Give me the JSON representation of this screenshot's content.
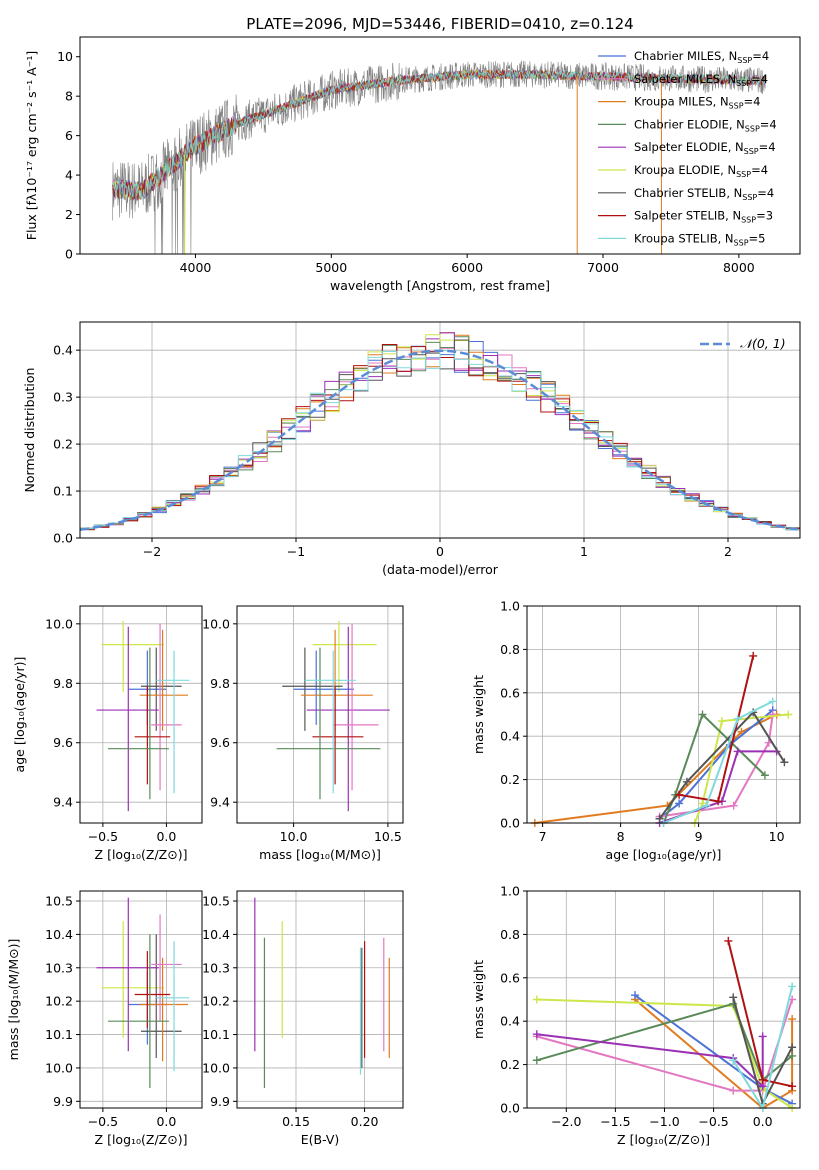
{
  "figure_title": "PLATE=2096, MJD=53446, FIBERID=0410, z=0.124",
  "colors": {
    "chabrier_miles": "#4c72d6",
    "salpeter_miles": "#e377c2",
    "kroupa_miles": "#e07b20",
    "chabrier_elodie": "#5a8a5a",
    "salpeter_elodie": "#9b30b5",
    "kroupa_elodie": "#cde64a",
    "chabrier_stelib": "#555555",
    "salpeter_stelib": "#b01010",
    "kroupa_stelib": "#7fd9dd",
    "data": "#808080",
    "gauss": "#5b8dd6",
    "grid": "#b0b0b0"
  },
  "chart_data": [
    {
      "id": "spectrum",
      "type": "line",
      "title": "PLATE=2096, MJD=53446, FIBERID=0410, z=0.124",
      "xlabel": "wavelength [Angstrom, rest frame]",
      "ylabel": "Flux [fλ10⁻¹⁷ erg cm⁻² s⁻¹ A⁻¹]",
      "xlim": [
        3150,
        8450
      ],
      "ylim": [
        0,
        11
      ],
      "xticks": [
        4000,
        5000,
        6000,
        7000,
        8000
      ],
      "yticks": [
        0,
        2,
        4,
        6,
        8,
        10
      ],
      "grid": false,
      "legend_position": "top-right",
      "continuum": {
        "x": [
          3390,
          3600,
          3800,
          4000,
          4300,
          4600,
          5000,
          5500,
          6000,
          6500,
          7000,
          7500,
          8000,
          8200
        ],
        "y": [
          3.3,
          3.2,
          4.3,
          5.5,
          6.6,
          7.3,
          8.3,
          8.8,
          9.1,
          9.1,
          9.0,
          8.9,
          8.8,
          8.8
        ]
      },
      "series": [
        {
          "name": "Chabrier MILES, N_SSP=4",
          "color_key": "chabrier_miles"
        },
        {
          "name": "Salpeter MILES, N_SSP=4",
          "color_key": "salpeter_miles"
        },
        {
          "name": "Kroupa MILES, N_SSP=4",
          "color_key": "kroupa_miles"
        },
        {
          "name": "Chabrier ELODIE, N_SSP=4",
          "color_key": "chabrier_elodie"
        },
        {
          "name": "Salpeter ELODIE, N_SSP=4",
          "color_key": "salpeter_elodie"
        },
        {
          "name": "Kroupa ELODIE, N_SSP=4",
          "color_key": "kroupa_elodie"
        },
        {
          "name": "Chabrier STELIB, N_SSP=4",
          "color_key": "chabrier_stelib"
        },
        {
          "name": "Salpeter STELIB, N_SSP=3",
          "color_key": "salpeter_stelib"
        },
        {
          "name": "Kroupa STELIB, N_SSP=5",
          "color_key": "kroupa_stelib"
        }
      ]
    },
    {
      "id": "residuals",
      "type": "line",
      "xlabel": "(data-model)/error",
      "ylabel": "Normed distribution",
      "xlim": [
        -2.5,
        2.5
      ],
      "ylim": [
        0,
        0.46
      ],
      "xticks": [
        -2,
        -1,
        0,
        1,
        2
      ],
      "yticks": [
        0.0,
        0.1,
        0.2,
        0.3,
        0.4
      ],
      "grid": true,
      "legend_position": "top-right",
      "gauss_label": "𝒩(0, 1)",
      "bin_width": 0.1
    },
    {
      "id": "age_vs_Z",
      "type": "scatter",
      "xlabel": "Z [log₁₀(Z/Z⊙)]",
      "ylabel": "age  [log₁₀(age/yr)]",
      "xlim": [
        -0.68,
        0.28
      ],
      "ylim": [
        9.33,
        10.06
      ],
      "xticks": [
        -0.5,
        0.0
      ],
      "yticks": [
        9.4,
        9.6,
        9.8,
        10.0
      ],
      "grid": true,
      "points": [
        {
          "c": "kroupa_elodie",
          "x": -0.34,
          "xerr": [
            0.17,
            0.32
          ],
          "y": 9.93,
          "yerr": [
            0.16,
            0.08
          ]
        },
        {
          "c": "chabrier_miles",
          "x": -0.15,
          "xerr": [
            0.15,
            0.15
          ],
          "y": 9.78,
          "yerr": [
            0.12,
            0.13
          ]
        },
        {
          "c": "chabrier_stelib",
          "x": -0.08,
          "xerr": [
            0.12,
            0.2
          ],
          "y": 9.79,
          "yerr": [
            0.15,
            0.13
          ]
        },
        {
          "c": "kroupa_miles",
          "x": -0.03,
          "xerr": [
            0.18,
            0.2
          ],
          "y": 9.76,
          "yerr": [
            0.12,
            0.22
          ]
        },
        {
          "c": "salpeter_elodie",
          "x": -0.3,
          "xerr": [
            0.25,
            0.24
          ],
          "y": 9.71,
          "yerr": [
            0.34,
            0.28
          ]
        },
        {
          "c": "salpeter_miles",
          "x": -0.05,
          "xerr": [
            0.07,
            0.17
          ],
          "y": 9.66,
          "yerr": [
            0.22,
            0.34
          ]
        },
        {
          "c": "salpeter_stelib",
          "x": -0.15,
          "xerr": [
            0.1,
            0.18
          ],
          "y": 9.62,
          "yerr": [
            0.16,
            0.17
          ]
        },
        {
          "c": "chabrier_elodie",
          "x": -0.13,
          "xerr": [
            0.33,
            0.15
          ],
          "y": 9.58,
          "yerr": [
            0.17,
            0.34
          ]
        },
        {
          "c": "kroupa_stelib",
          "x": 0.06,
          "xerr": [
            0.14,
            0.12
          ],
          "y": 9.81,
          "yerr": [
            0.38,
            0.1
          ]
        }
      ]
    },
    {
      "id": "age_vs_mass",
      "type": "scatter",
      "xlabel": "mass [log₁₀(M/M⊙)]",
      "ylabel": "",
      "xlim": [
        9.7,
        10.58
      ],
      "ylim": [
        9.33,
        10.06
      ],
      "xticks": [
        10.0,
        10.5
      ],
      "yticks": [
        9.4,
        9.6,
        9.8,
        10.0
      ],
      "grid": true,
      "points": [
        {
          "c": "kroupa_elodie",
          "x": 10.24,
          "xerr": [
            0.14,
            0.2
          ],
          "y": 9.93,
          "yerr": [
            0.16,
            0.08
          ]
        },
        {
          "c": "chabrier_miles",
          "x": 10.12,
          "xerr": [
            0.12,
            0.2
          ],
          "y": 9.78,
          "yerr": [
            0.12,
            0.13
          ]
        },
        {
          "c": "chabrier_stelib",
          "x": 10.06,
          "xerr": [
            0.12,
            0.2
          ],
          "y": 9.79,
          "yerr": [
            0.15,
            0.13
          ]
        },
        {
          "c": "kroupa_miles",
          "x": 10.22,
          "xerr": [
            0.18,
            0.2
          ],
          "y": 9.76,
          "yerr": [
            0.12,
            0.22
          ]
        },
        {
          "c": "salpeter_elodie",
          "x": 10.29,
          "xerr": [
            0.22,
            0.22
          ],
          "y": 9.71,
          "yerr": [
            0.34,
            0.28
          ]
        },
        {
          "c": "salpeter_miles",
          "x": 10.31,
          "xerr": [
            0.1,
            0.14
          ],
          "y": 9.66,
          "yerr": [
            0.22,
            0.34
          ]
        },
        {
          "c": "salpeter_stelib",
          "x": 10.22,
          "xerr": [
            0.12,
            0.15
          ],
          "y": 9.62,
          "yerr": [
            0.16,
            0.17
          ]
        },
        {
          "c": "chabrier_elodie",
          "x": 10.14,
          "xerr": [
            0.23,
            0.32
          ],
          "y": 9.58,
          "yerr": [
            0.17,
            0.34
          ]
        },
        {
          "c": "kroupa_stelib",
          "x": 10.21,
          "xerr": [
            0.15,
            0.12
          ],
          "y": 9.81,
          "yerr": [
            0.38,
            0.1
          ]
        }
      ]
    },
    {
      "id": "mass_vs_Z",
      "type": "scatter",
      "xlabel": "Z [log₁₀(Z/Z⊙)]",
      "ylabel": "mass [log₁₀(M/M⊙)]",
      "xlim": [
        -0.68,
        0.28
      ],
      "ylim": [
        9.88,
        10.53
      ],
      "xticks": [
        -0.5,
        0.0
      ],
      "yticks": [
        9.9,
        10.0,
        10.1,
        10.2,
        10.3,
        10.4,
        10.5
      ],
      "grid": true,
      "points": [
        {
          "c": "kroupa_elodie",
          "x": -0.34,
          "xerr": [
            0.17,
            0.32
          ],
          "y": 10.24,
          "yerr": [
            0.15,
            0.2
          ]
        },
        {
          "c": "chabrier_miles",
          "x": -0.15,
          "xerr": [
            0.15,
            0.15
          ],
          "y": 10.19,
          "yerr": [
            0.12,
            0.1
          ]
        },
        {
          "c": "chabrier_stelib",
          "x": -0.08,
          "xerr": [
            0.12,
            0.2
          ],
          "y": 10.11,
          "yerr": [
            0.08,
            0.29
          ]
        },
        {
          "c": "kroupa_miles",
          "x": -0.03,
          "xerr": [
            0.18,
            0.2
          ],
          "y": 10.19,
          "yerr": [
            0.17,
            0.14
          ]
        },
        {
          "c": "salpeter_elodie",
          "x": -0.3,
          "xerr": [
            0.25,
            0.24
          ],
          "y": 10.3,
          "yerr": [
            0.25,
            0.21
          ]
        },
        {
          "c": "salpeter_miles",
          "x": -0.05,
          "xerr": [
            0.07,
            0.17
          ],
          "y": 10.31,
          "yerr": [
            0.17,
            0.15
          ]
        },
        {
          "c": "salpeter_stelib",
          "x": -0.15,
          "xerr": [
            0.1,
            0.18
          ],
          "y": 10.22,
          "yerr": [
            0.1,
            0.13
          ]
        },
        {
          "c": "chabrier_elodie",
          "x": -0.13,
          "xerr": [
            0.33,
            0.15
          ],
          "y": 10.14,
          "yerr": [
            0.2,
            0.26
          ]
        },
        {
          "c": "kroupa_stelib",
          "x": 0.06,
          "xerr": [
            0.14,
            0.12
          ],
          "y": 10.21,
          "yerr": [
            0.22,
            0.17
          ]
        }
      ]
    },
    {
      "id": "mass_vs_ebv",
      "type": "scatter",
      "xlabel": "E(B-V)",
      "ylabel": "",
      "xlim": [
        0.107,
        0.228
      ],
      "ylim": [
        9.88,
        10.53
      ],
      "xticks": [
        0.15,
        0.2
      ],
      "yticks": [
        9.9,
        10.0,
        10.1,
        10.2,
        10.3,
        10.4,
        10.5
      ],
      "grid": true,
      "points": [
        {
          "c": "salpeter_elodie",
          "x": 0.12,
          "y": 10.28,
          "yerr": [
            0.23,
            0.23
          ]
        },
        {
          "c": "chabrier_elodie",
          "x": 0.127,
          "y": 10.16,
          "yerr": [
            0.22,
            0.23
          ]
        },
        {
          "c": "kroupa_elodie",
          "x": 0.14,
          "y": 10.24,
          "yerr": [
            0.15,
            0.2
          ]
        },
        {
          "c": "chabrier_stelib",
          "x": 0.198,
          "y": 10.13,
          "yerr": [
            0.13,
            0.23
          ]
        },
        {
          "c": "kroupa_stelib",
          "x": 0.197,
          "y": 10.2,
          "yerr": [
            0.22,
            0.16
          ]
        },
        {
          "c": "salpeter_stelib",
          "x": 0.2,
          "y": 10.25,
          "yerr": [
            0.22,
            0.13
          ]
        },
        {
          "c": "salpeter_miles",
          "x": 0.214,
          "y": 10.24,
          "yerr": [
            0.19,
            0.15
          ]
        },
        {
          "c": "kroupa_miles",
          "x": 0.218,
          "y": 10.18,
          "yerr": [
            0.15,
            0.15
          ]
        }
      ]
    },
    {
      "id": "weight_vs_age",
      "type": "line",
      "xlabel": "age  [log₁₀(age/yr)]",
      "ylabel": "mass weight",
      "xlim": [
        6.8,
        10.3
      ],
      "ylim": [
        0,
        1.0
      ],
      "xticks": [
        7,
        8,
        9,
        10
      ],
      "yticks": [
        0.0,
        0.2,
        0.4,
        0.6,
        0.8,
        1.0
      ],
      "grid": true,
      "series": [
        {
          "c": "kroupa_miles",
          "x": [
            6.9,
            8.6,
            9.55,
            10.0
          ],
          "y": [
            0.0,
            0.08,
            0.42,
            0.5
          ]
        },
        {
          "c": "chabrier_miles",
          "x": [
            8.5,
            8.75,
            9.4,
            9.95
          ],
          "y": [
            0.02,
            0.09,
            0.36,
            0.52
          ]
        },
        {
          "c": "salpeter_miles",
          "x": [
            8.5,
            9.45,
            9.9,
            9.95
          ],
          "y": [
            0.03,
            0.08,
            0.37,
            0.5
          ]
        },
        {
          "c": "kroupa_elodie",
          "x": [
            8.95,
            9.05,
            9.3,
            10.15
          ],
          "y": [
            0.0,
            0.09,
            0.47,
            0.5
          ]
        },
        {
          "c": "chabrier_elodie",
          "x": [
            8.55,
            8.7,
            9.05,
            9.85
          ],
          "y": [
            0.0,
            0.13,
            0.5,
            0.22
          ]
        },
        {
          "c": "salpeter_elodie",
          "x": [
            8.5,
            9.3,
            9.5,
            10.0
          ],
          "y": [
            0.0,
            0.1,
            0.33,
            0.33
          ]
        },
        {
          "c": "chabrier_stelib",
          "x": [
            8.5,
            8.85,
            9.7,
            10.1
          ],
          "y": [
            0.02,
            0.19,
            0.51,
            0.28
          ]
        },
        {
          "c": "salpeter_stelib",
          "x": [
            8.75,
            9.25,
            9.7
          ],
          "y": [
            0.13,
            0.1,
            0.77
          ]
        },
        {
          "c": "kroupa_stelib",
          "x": [
            8.55,
            9.1,
            9.5,
            9.95
          ],
          "y": [
            0.0,
            0.08,
            0.48,
            0.56
          ]
        }
      ]
    },
    {
      "id": "weight_vs_Z",
      "type": "line",
      "xlabel": "Z [log₁₀(Z/Z⊙)]",
      "ylabel": "mass weight",
      "xlim": [
        -2.4,
        0.38
      ],
      "ylim": [
        0,
        1.0
      ],
      "xticks": [
        -2.0,
        -1.5,
        -1.0,
        -0.5,
        0.0
      ],
      "yticks": [
        0.0,
        0.2,
        0.4,
        0.6,
        0.8,
        1.0
      ],
      "grid": true,
      "series": [
        {
          "c": "kroupa_miles",
          "x": [
            -1.3,
            0.0,
            0.3,
            0.3
          ],
          "y": [
            0.5,
            0.0,
            0.08,
            0.41
          ]
        },
        {
          "c": "chabrier_miles",
          "x": [
            -1.3,
            0.0,
            0.3
          ],
          "y": [
            0.52,
            0.09,
            0.02
          ]
        },
        {
          "c": "salpeter_miles",
          "x": [
            -2.3,
            -0.3,
            0.0,
            0.3
          ],
          "y": [
            0.33,
            0.08,
            0.08,
            0.5
          ]
        },
        {
          "c": "kroupa_elodie",
          "x": [
            -2.3,
            -0.3,
            0.0,
            0.3
          ],
          "y": [
            0.5,
            0.47,
            0.09,
            0.0
          ]
        },
        {
          "c": "chabrier_elodie",
          "x": [
            -2.3,
            -0.3,
            0.0,
            0.3
          ],
          "y": [
            0.22,
            0.48,
            0.13,
            0.24
          ]
        },
        {
          "c": "salpeter_elodie",
          "x": [
            -2.3,
            -0.3,
            0.0,
            0.0
          ],
          "y": [
            0.34,
            0.23,
            0.1,
            0.33
          ]
        },
        {
          "c": "chabrier_stelib",
          "x": [
            -0.3,
            0.0,
            0.3
          ],
          "y": [
            0.51,
            0.02,
            0.28
          ]
        },
        {
          "c": "salpeter_stelib",
          "x": [
            -0.35,
            0.0,
            0.3
          ],
          "y": [
            0.77,
            0.13,
            0.1
          ]
        },
        {
          "c": "kroupa_stelib",
          "x": [
            -0.3,
            0.0,
            0.3
          ],
          "y": [
            0.22,
            0.0,
            0.56
          ]
        }
      ]
    }
  ]
}
